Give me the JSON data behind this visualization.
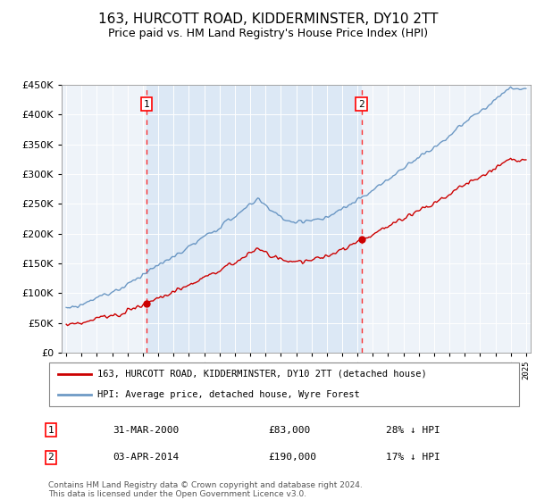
{
  "title": "163, HURCOTT ROAD, KIDDERMINSTER, DY10 2TT",
  "subtitle": "Price paid vs. HM Land Registry's House Price Index (HPI)",
  "legend_line1": "163, HURCOTT ROAD, KIDDERMINSTER, DY10 2TT (detached house)",
  "legend_line2": "HPI: Average price, detached house, Wyre Forest",
  "footnote": "Contains HM Land Registry data © Crown copyright and database right 2024.\nThis data is licensed under the Open Government Licence v3.0.",
  "sale1_date": "31-MAR-2000",
  "sale1_price": "£83,000",
  "sale1_hpi": "28% ↓ HPI",
  "sale2_date": "03-APR-2014",
  "sale2_price": "£190,000",
  "sale2_hpi": "17% ↓ HPI",
  "red_color": "#cc0000",
  "blue_color": "#5588bb",
  "shade_color": "#dce8f5",
  "background_color": "#eef3f9",
  "ylim": [
    0,
    450000
  ],
  "yticks": [
    0,
    50000,
    100000,
    150000,
    200000,
    250000,
    300000,
    350000,
    400000,
    450000
  ],
  "sale1_year": 2000.25,
  "sale2_year": 2014.26,
  "sale1_price_val": 83000,
  "sale2_price_val": 190000,
  "xstart": 1995,
  "xend": 2025
}
